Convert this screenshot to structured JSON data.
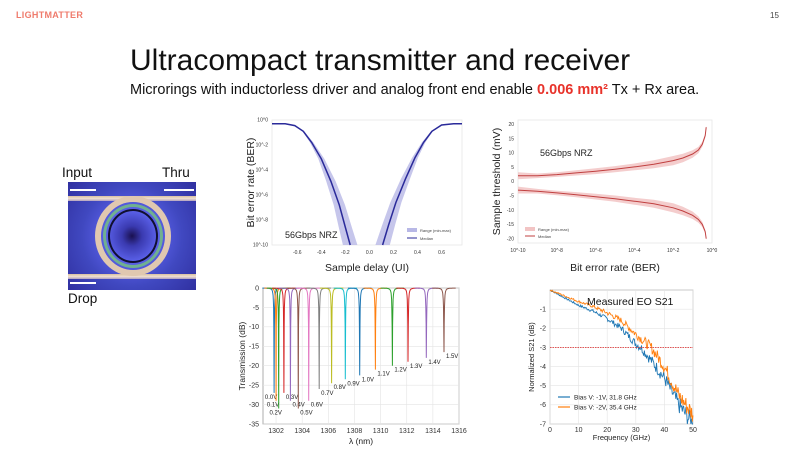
{
  "header": {
    "logo": "LIGHTMATTER",
    "page_number": "15"
  },
  "title": "Ultracompact transmitter and receiver",
  "subtitle": {
    "before": "Microrings with inductorless driver and analog front end enable ",
    "highlight": "0.006 mm²",
    "after": " Tx + Rx area.",
    "highlight_color": "#e8322a"
  },
  "figure": {
    "labels": {
      "input": "Input",
      "thru": "Thru",
      "drop": "Drop"
    },
    "description_icon": "microring-micrograph"
  },
  "chart_data": [
    {
      "type": "line",
      "id": "ber-vs-delay",
      "annotation": "56Gbps NRZ",
      "xlabel": "Sample delay (UI)",
      "ylabel": "Bit error rate (BER)",
      "xlim": [
        -0.81,
        0.77
      ],
      "ylim": [
        1e-10,
        1
      ],
      "yscale": "log",
      "grid": false,
      "legend": "bottom-right",
      "xticks": [
        "-0.6",
        "-0.4",
        "-0.2",
        "0.0",
        "0.2",
        "0.4",
        "0.6"
      ],
      "yticks": [
        "10^0",
        "10^-2",
        "10^-4",
        "10^-6",
        "10^-8",
        "10^-10"
      ],
      "legend_entries": [
        "Range (min-max)",
        "Median"
      ],
      "colors": {
        "median": "#2a2a9a",
        "range": "#b8b8e6"
      },
      "series": [
        {
          "name": "Median",
          "branches": [
            {
              "x": [
                -0.81,
                -0.7,
                -0.62,
                -0.55,
                -0.48,
                -0.4,
                -0.32,
                -0.25,
                -0.2,
                -0.16
              ],
              "log10_ber": [
                -0.3,
                -0.3,
                -0.45,
                -0.9,
                -1.8,
                -3.1,
                -4.9,
                -6.8,
                -8.6,
                -10
              ]
            },
            {
              "x": [
                0.11,
                0.16,
                0.22,
                0.3,
                0.38,
                0.45,
                0.52,
                0.6,
                0.7,
                0.77
              ],
              "log10_ber": [
                -10,
                -8.4,
                -6.6,
                -4.7,
                -3.0,
                -1.8,
                -0.9,
                -0.4,
                -0.3,
                -0.3
              ]
            }
          ]
        },
        {
          "name": "Range (min-max)",
          "half_width_ui": [
            0.0,
            0.02,
            0.04,
            0.05,
            0.06
          ]
        }
      ]
    },
    {
      "type": "line",
      "id": "threshold-vs-ber",
      "annotation": "56Gbps NRZ",
      "xlabel": "Bit error rate (BER)",
      "ylabel": "Sample threshold (mV)",
      "xlim": [
        1e-10,
        1
      ],
      "xscale": "log",
      "ylim": [
        -21.5,
        21.5
      ],
      "grid": false,
      "legend": "bottom-left",
      "xticks": [
        "10^-10",
        "10^-8",
        "10^-6",
        "10^-4",
        "10^-2",
        "10^0"
      ],
      "yticks": [
        "20",
        "15",
        "10",
        "5",
        "0",
        "-5",
        "-10",
        "-15",
        "-20"
      ],
      "legend_entries": [
        "Range (min-max)",
        "Median"
      ],
      "colors": {
        "median": "#c04040",
        "range": "#f2c4c4"
      },
      "series": [
        {
          "name": "Median upper",
          "log10_ber": [
            -10,
            -9,
            -8,
            -7,
            -6,
            -5,
            -4,
            -3,
            -2,
            -1.5,
            -1,
            -0.7,
            -0.5,
            -0.35,
            -0.3
          ],
          "mv": [
            2,
            2,
            2.4,
            3,
            3.6,
            4.3,
            5.1,
            6,
            7.3,
            8.2,
            9.6,
            11,
            13,
            16,
            19
          ]
        },
        {
          "name": "Median lower",
          "log10_ber": [
            -10,
            -9,
            -8,
            -7,
            -6,
            -5,
            -4,
            -3,
            -2,
            -1.5,
            -1,
            -0.7,
            -0.5,
            -0.35,
            -0.3
          ],
          "mv": [
            -3,
            -3.4,
            -4,
            -4.6,
            -5.3,
            -6,
            -6.9,
            -7.8,
            -9.2,
            -10.3,
            -11.8,
            -13.3,
            -15,
            -17.5,
            -20
          ]
        },
        {
          "name": "Range (min-max)",
          "half_width_mv": [
            1.2,
            0.8,
            0.8,
            0.9,
            1.0,
            1.1,
            1.2,
            1.4,
            1.6,
            1.5,
            1.3,
            1.1,
            0.9,
            0.7,
            0.5
          ]
        }
      ]
    },
    {
      "type": "line",
      "id": "ring-transmission",
      "xlabel": "λ (nm)",
      "ylabel": "Transmission (dB)",
      "xlim": [
        1301,
        1316
      ],
      "ylim": [
        -35,
        0
      ],
      "grid": true,
      "xticks": [
        "1302",
        "1304",
        "1306",
        "1308",
        "1310",
        "1312",
        "1314",
        "1316"
      ],
      "yticks": [
        "0",
        "-5",
        "-10",
        "-15",
        "-20",
        "-25",
        "-30",
        "-35"
      ],
      "series": [
        {
          "name": "0.0V",
          "center_nm": 1301.85,
          "min_db": -27,
          "color": "#1f77b4"
        },
        {
          "name": "0.1V",
          "center_nm": 1302.0,
          "min_db": -29,
          "color": "#ff7f0e"
        },
        {
          "name": "0.2V",
          "center_nm": 1302.2,
          "min_db": -31,
          "color": "#2ca02c"
        },
        {
          "name": "0.3V",
          "center_nm": 1302.6,
          "min_db": -27,
          "color": "#d62728"
        },
        {
          "name": "0.4V",
          "center_nm": 1303.1,
          "min_db": -29,
          "color": "#9467bd"
        },
        {
          "name": "0.5V",
          "center_nm": 1303.7,
          "min_db": -31,
          "color": "#8c564b"
        },
        {
          "name": "0.6V",
          "center_nm": 1304.5,
          "min_db": -29,
          "color": "#e377c2"
        },
        {
          "name": "0.7V",
          "center_nm": 1305.3,
          "min_db": -26,
          "color": "#7f7f7f"
        },
        {
          "name": "0.8V",
          "center_nm": 1306.25,
          "min_db": -24.5,
          "color": "#bcbd22"
        },
        {
          "name": "0.9V",
          "center_nm": 1307.3,
          "min_db": -23.5,
          "color": "#17becf"
        },
        {
          "name": "1.0V",
          "center_nm": 1308.4,
          "min_db": -22.5,
          "color": "#1f77b4"
        },
        {
          "name": "1.1V",
          "center_nm": 1309.6,
          "min_db": -21,
          "color": "#ff7f0e"
        },
        {
          "name": "1.2V",
          "center_nm": 1310.9,
          "min_db": -20,
          "color": "#2ca02c"
        },
        {
          "name": "1.3V",
          "center_nm": 1312.1,
          "min_db": -19,
          "color": "#d62728"
        },
        {
          "name": "1.4V",
          "center_nm": 1313.5,
          "min_db": -18,
          "color": "#9467bd"
        },
        {
          "name": "1.5V",
          "center_nm": 1314.85,
          "min_db": -16.5,
          "color": "#8c564b"
        }
      ]
    },
    {
      "type": "line",
      "id": "eo-s21",
      "title": "Measured EO S21",
      "xlabel": "Frequency (GHz)",
      "ylabel": "Normalized S21 (dB)",
      "xlim": [
        0,
        50
      ],
      "ylim": [
        -7,
        0
      ],
      "grid": true,
      "legend": "bottom-left",
      "reference_line_db": -3,
      "reference_color": "#e04040",
      "xticks": [
        "0",
        "10",
        "20",
        "30",
        "40",
        "50"
      ],
      "yticks": [
        "-1",
        "-2",
        "-3",
        "-4",
        "-5",
        "-6",
        "-7"
      ],
      "series": [
        {
          "name": "Bias V: -1V, 31.8 GHz",
          "color": "#1f77b4",
          "x": [
            0,
            5,
            10,
            15,
            20,
            25,
            30,
            31.8,
            35,
            40,
            45,
            50
          ],
          "y": [
            0,
            -0.4,
            -0.8,
            -1.1,
            -1.5,
            -2.0,
            -2.8,
            -3.0,
            -3.6,
            -4.6,
            -6.0,
            -7.0
          ]
        },
        {
          "name": "Bias V: -2V, 35.4 GHz",
          "color": "#ff7f0e",
          "x": [
            0,
            5,
            10,
            15,
            20,
            25,
            30,
            35.4,
            40,
            45,
            50
          ],
          "y": [
            0,
            -0.3,
            -0.6,
            -0.85,
            -1.2,
            -1.6,
            -2.3,
            -3.0,
            -4.0,
            -5.5,
            -6.5
          ]
        }
      ]
    }
  ]
}
